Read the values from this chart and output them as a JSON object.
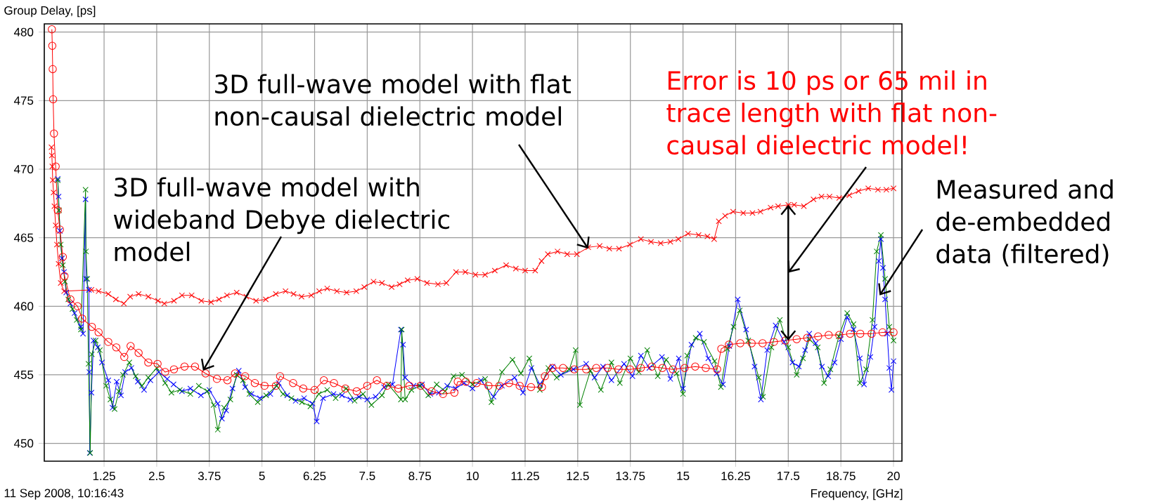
{
  "chart_data": {
    "type": "line",
    "xlabel": "Frequency, [GHz]",
    "ylabel": "Group Delay, [ps]",
    "xlim": [
      -0.17,
      20.2
    ],
    "ylim": [
      448.7,
      480.6
    ],
    "xticks": [
      1.25,
      2.5,
      3.75,
      5,
      6.25,
      7.5,
      8.75,
      10,
      11.25,
      12.5,
      13.75,
      15,
      16.25,
      17.5,
      18.75,
      20
    ],
    "yticks": [
      450,
      455,
      460,
      465,
      470,
      475,
      480
    ],
    "grid": true,
    "series": [
      {
        "color": "#0000ff",
        "marker": "cross",
        "x": [
          0.15,
          0.17,
          0.2,
          0.25,
          0.3,
          0.35,
          0.45,
          0.55,
          0.7,
          0.75,
          0.81,
          0.82,
          0.89,
          0.9,
          0.91,
          0.95,
          1.0,
          1.1,
          1.2,
          1.35,
          1.45,
          1.55,
          1.65,
          1.75,
          1.9,
          2.05,
          2.2,
          2.35,
          2.55,
          2.75,
          2.9,
          3.1,
          3.3,
          3.55,
          3.75,
          3.95,
          4.05,
          4.15,
          4.3,
          4.45,
          4.6,
          4.75,
          4.95,
          5.2,
          5.4,
          5.6,
          5.8,
          6.0,
          6.2,
          6.3,
          6.45,
          6.7,
          6.9,
          7.1,
          7.3,
          7.5,
          7.7,
          7.9,
          8.1,
          8.3,
          8.35,
          8.4,
          8.6,
          8.8,
          9.0,
          9.2,
          9.4,
          9.6,
          9.8,
          10.0,
          10.2,
          10.5,
          10.7,
          11.0,
          11.2,
          11.4,
          11.6,
          11.9,
          12.1,
          12.4,
          12.7,
          12.9,
          13.1,
          13.3,
          13.6,
          13.8,
          14.0,
          14.2,
          14.5,
          14.7,
          14.9,
          15.0,
          15.2,
          15.4,
          15.6,
          15.8,
          15.95,
          16.1,
          16.3,
          16.5,
          16.7,
          16.85,
          17.0,
          17.2,
          17.4,
          17.6,
          17.75,
          17.9,
          18.0,
          18.15,
          18.3,
          18.45,
          18.6,
          18.75,
          18.9,
          19.05,
          19.2,
          19.3,
          19.45,
          19.55,
          19.65,
          19.7,
          19.75,
          19.8,
          19.85,
          19.9,
          19.95,
          20.0
        ],
        "values": [
          469.3,
          468.0,
          465.5,
          463.5,
          462.5,
          461.0,
          460.2,
          459.5,
          458.5,
          458.0,
          467.8,
          462.0,
          461.2,
          455.2,
          449.3,
          453.7,
          457.5,
          457.0,
          455.9,
          454.6,
          452.6,
          454.5,
          453.5,
          455.2,
          455.5,
          454.5,
          453.9,
          454.6,
          455.2,
          454.7,
          454.3,
          453.8,
          454.0,
          453.5,
          453.9,
          452.9,
          451.8,
          452.4,
          454.0,
          455.3,
          454.1,
          453.6,
          453.3,
          453.6,
          454.4,
          453.5,
          453.1,
          453.3,
          452.9,
          451.6,
          453.3,
          453.6,
          453.5,
          453.2,
          453.4,
          453.2,
          453.4,
          454.1,
          454.3,
          458.3,
          457.2,
          454.8,
          454.2,
          454.3,
          453.6,
          453.7,
          454.2,
          454.0,
          454.4,
          454.0,
          454.6,
          453.4,
          454.2,
          454.8,
          453.7,
          455.5,
          454.3,
          455.6,
          455.0,
          455.4,
          455.8,
          454.8,
          455.6,
          454.6,
          455.8,
          454.9,
          456.4,
          455.5,
          456.3,
          454.7,
          456.2,
          454.0,
          457.2,
          458.0,
          456.2,
          455.1,
          454.3,
          457.1,
          460.5,
          458.3,
          455.6,
          453.2,
          456.8,
          458.6,
          457.4,
          455.9,
          455.6,
          456.8,
          458.0,
          457.3,
          455.6,
          454.9,
          455.9,
          457.6,
          459.2,
          458.3,
          456.2,
          454.3,
          456.3,
          458.5,
          463.3,
          464.9,
          462.8,
          460.5,
          458.0,
          455.5,
          453.9,
          456.0
        ]
      },
      {
        "color": "#008000",
        "marker": "cross",
        "x": [
          0.15,
          0.18,
          0.22,
          0.27,
          0.32,
          0.4,
          0.5,
          0.6,
          0.7,
          0.81,
          0.82,
          0.85,
          0.88,
          0.92,
          0.96,
          1.05,
          1.15,
          1.3,
          1.4,
          1.5,
          1.6,
          1.7,
          1.85,
          2.0,
          2.15,
          2.3,
          2.5,
          2.7,
          2.85,
          3.05,
          3.3,
          3.5,
          3.7,
          3.85,
          3.95,
          4.1,
          4.25,
          4.4,
          4.55,
          4.7,
          4.9,
          5.1,
          5.35,
          5.5,
          5.7,
          5.95,
          6.15,
          6.35,
          6.55,
          6.75,
          7.0,
          7.2,
          7.4,
          7.6,
          7.85,
          8.0,
          8.3,
          8.32,
          8.4,
          8.55,
          8.75,
          8.95,
          9.15,
          9.35,
          9.55,
          9.75,
          10.0,
          10.3,
          10.45,
          10.7,
          10.95,
          11.15,
          11.35,
          11.6,
          11.8,
          12.0,
          12.3,
          12.45,
          12.55,
          12.8,
          13.05,
          13.3,
          13.5,
          13.75,
          13.95,
          14.15,
          14.4,
          14.6,
          14.85,
          15.0,
          15.1,
          15.3,
          15.5,
          15.75,
          15.9,
          16.05,
          16.2,
          16.35,
          16.55,
          16.8,
          16.9,
          17.1,
          17.3,
          17.5,
          17.7,
          17.85,
          18.0,
          18.2,
          18.35,
          18.5,
          18.7,
          18.9,
          19.05,
          19.2,
          19.35,
          19.5,
          19.6,
          19.7,
          19.8,
          19.9,
          20.0
        ],
        "values": [
          469.2,
          467.0,
          464.5,
          463.0,
          461.8,
          460.5,
          459.8,
          459.0,
          458.3,
          468.5,
          464.0,
          462.0,
          455.8,
          449.3,
          456.5,
          457.5,
          456.8,
          454.2,
          453.2,
          452.5,
          453.8,
          455.0,
          455.9,
          454.9,
          454.2,
          454.8,
          455.5,
          454.4,
          453.7,
          453.9,
          453.6,
          454.2,
          453.8,
          452.8,
          451.0,
          452.6,
          453.2,
          455.0,
          454.6,
          453.6,
          453.0,
          453.5,
          454.2,
          453.6,
          453.3,
          453.0,
          452.7,
          453.6,
          453.9,
          453.3,
          454.0,
          453.1,
          453.6,
          452.8,
          453.5,
          454.3,
          453.2,
          458.3,
          453.2,
          453.9,
          454.2,
          453.5,
          454.3,
          453.8,
          454.9,
          455.0,
          454.3,
          454.7,
          453.0,
          455.2,
          456.1,
          455.1,
          456.2,
          453.9,
          455.5,
          454.8,
          455.4,
          456.8,
          452.8,
          455.3,
          453.9,
          455.9,
          454.4,
          456.2,
          455.2,
          456.8,
          454.9,
          456.1,
          455.1,
          453.6,
          456.4,
          457.7,
          457.4,
          456.0,
          454.1,
          456.9,
          458.5,
          459.7,
          457.5,
          454.8,
          453.4,
          457.0,
          459.0,
          457.0,
          455.0,
          456.2,
          457.6,
          457.0,
          454.4,
          455.4,
          457.8,
          459.5,
          458.7,
          454.4,
          455.4,
          459.0,
          464.0,
          465.2,
          462.0,
          458.5,
          457.5
        ]
      },
      {
        "color": "#ff0000",
        "marker": "circle",
        "x": [
          0.01,
          0.02,
          0.03,
          0.04,
          0.06,
          0.1,
          0.15,
          0.2,
          0.27,
          0.31,
          0.45,
          0.62,
          0.73,
          0.96,
          1.12,
          1.35,
          1.54,
          1.73,
          1.88,
          2.07,
          2.3,
          2.52,
          2.7,
          2.91,
          3.16,
          3.41,
          3.66,
          3.93,
          4.18,
          4.36,
          4.6,
          4.83,
          5.06,
          5.33,
          5.43,
          5.74,
          5.98,
          6.25,
          6.47,
          6.71,
          6.98,
          7.25,
          7.5,
          7.73,
          7.97,
          8.24,
          8.5,
          8.77,
          9.03,
          9.3,
          9.57,
          9.65,
          9.84,
          10.1,
          10.38,
          10.64,
          10.87,
          11.12,
          11.39,
          11.65,
          11.72,
          11.9,
          12.15,
          12.42,
          12.7,
          12.94,
          13.21,
          13.47,
          13.74,
          14.0,
          14.26,
          14.51,
          14.76,
          15.04,
          15.29,
          15.54,
          15.81,
          15.91,
          16.09,
          16.36,
          16.63,
          16.89,
          17.16,
          17.43,
          17.7,
          17.95,
          18.21,
          18.46,
          18.71,
          18.97,
          19.21,
          19.48,
          19.74,
          20.0
        ],
        "values": [
          480.2,
          479.0,
          477.3,
          475.1,
          472.6,
          470.2,
          467.0,
          465.6,
          463.6,
          462.2,
          460.5,
          460.0,
          459.1,
          458.5,
          458.1,
          457.4,
          457.0,
          456.3,
          457.1,
          456.6,
          455.9,
          455.8,
          455.2,
          455.4,
          455.6,
          455.6,
          455.1,
          454.7,
          454.6,
          455.1,
          454.9,
          454.4,
          454.2,
          454.2,
          454.9,
          454.4,
          454.0,
          453.9,
          454.6,
          454.4,
          454.0,
          453.8,
          454.2,
          454.6,
          454.2,
          454.0,
          454.2,
          454.2,
          453.8,
          453.6,
          453.7,
          454.5,
          454.5,
          454.4,
          454.2,
          454.2,
          454.4,
          454.2,
          454.1,
          454.1,
          454.9,
          455.5,
          455.5,
          455.4,
          455.4,
          455.5,
          455.5,
          455.4,
          455.4,
          455.5,
          455.6,
          455.5,
          455.4,
          455.5,
          455.6,
          455.5,
          455.4,
          456.9,
          457.2,
          457.3,
          457.3,
          457.3,
          457.4,
          457.5,
          457.6,
          457.7,
          457.8,
          457.9,
          457.9,
          458.0,
          458.0,
          458.0,
          458.1,
          458.1
        ]
      },
      {
        "color": "#ff0000",
        "marker": "cross",
        "x": [
          0.0,
          0.01,
          0.02,
          0.03,
          0.05,
          0.07,
          0.1,
          0.13,
          0.17,
          0.22,
          0.3,
          0.95,
          1.12,
          1.35,
          1.53,
          1.72,
          1.87,
          2.07,
          2.3,
          2.53,
          2.68,
          2.91,
          3.1,
          3.33,
          3.56,
          3.79,
          3.98,
          4.17,
          4.4,
          4.63,
          4.86,
          5.09,
          5.33,
          5.56,
          5.75,
          5.94,
          6.17,
          6.36,
          6.55,
          6.78,
          7.01,
          7.24,
          7.43,
          7.65,
          7.85,
          8.08,
          8.27,
          8.46,
          8.69,
          8.92,
          9.18,
          9.38,
          9.61,
          9.83,
          10.07,
          10.3,
          10.53,
          10.8,
          11.03,
          11.25,
          11.49,
          11.64,
          11.79,
          12.02,
          12.25,
          12.48,
          12.75,
          13.02,
          13.25,
          13.48,
          13.74,
          14.0,
          14.24,
          14.47,
          14.7,
          14.89,
          15.12,
          15.37,
          15.58,
          15.74,
          15.85,
          16.0,
          16.19,
          16.43,
          16.65,
          16.84,
          17.08,
          17.26,
          17.5,
          17.64,
          17.87,
          18.1,
          18.29,
          18.48,
          18.71,
          18.95,
          19.17,
          19.4,
          19.63,
          19.83,
          20.0
        ],
        "values": [
          471.6,
          471.0,
          470.2,
          469.2,
          468.3,
          467.3,
          465.9,
          464.5,
          463.1,
          461.7,
          461.1,
          461.2,
          461.1,
          460.9,
          460.5,
          460.2,
          460.7,
          460.9,
          460.7,
          460.4,
          460.2,
          460.4,
          460.8,
          460.8,
          460.4,
          460.3,
          460.5,
          460.8,
          461.0,
          460.7,
          460.4,
          460.5,
          460.9,
          461.1,
          460.9,
          460.7,
          460.8,
          461.1,
          461.3,
          461.1,
          461.0,
          461.1,
          461.4,
          461.8,
          461.7,
          461.4,
          461.6,
          461.9,
          462.0,
          461.7,
          461.6,
          461.7,
          462.5,
          462.5,
          462.3,
          462.3,
          462.6,
          463.0,
          462.75,
          462.6,
          462.6,
          463.3,
          463.8,
          464.0,
          463.8,
          463.8,
          464.3,
          464.4,
          464.2,
          464.2,
          464.5,
          464.9,
          464.7,
          464.6,
          464.7,
          464.9,
          465.3,
          465.2,
          465.1,
          464.9,
          466.2,
          466.6,
          466.9,
          466.8,
          466.8,
          466.9,
          467.2,
          467.3,
          467.4,
          467.4,
          467.3,
          467.8,
          468.0,
          468.0,
          467.9,
          468.1,
          468.4,
          468.6,
          468.5,
          468.5,
          468.6
        ]
      }
    ],
    "annotations": [
      {
        "text": "3D full-wave model with wideband Debye dielectric model",
        "x": 3.6,
        "y": 455.3
      },
      {
        "text": "3D full-wave model with flat non-causal dielectric model",
        "x": 12.75,
        "y": 464.2
      },
      {
        "text": "Error is 10 ps or 65 mil in trace length with flat non-causal dielectric model!",
        "x": 17.5,
        "y": 467.4
      },
      {
        "text": "Measured and de-embedded data (filtered)",
        "x": 19.67,
        "y": 460.8
      },
      "11 Sep 2008, 10:16:43"
    ]
  }
}
